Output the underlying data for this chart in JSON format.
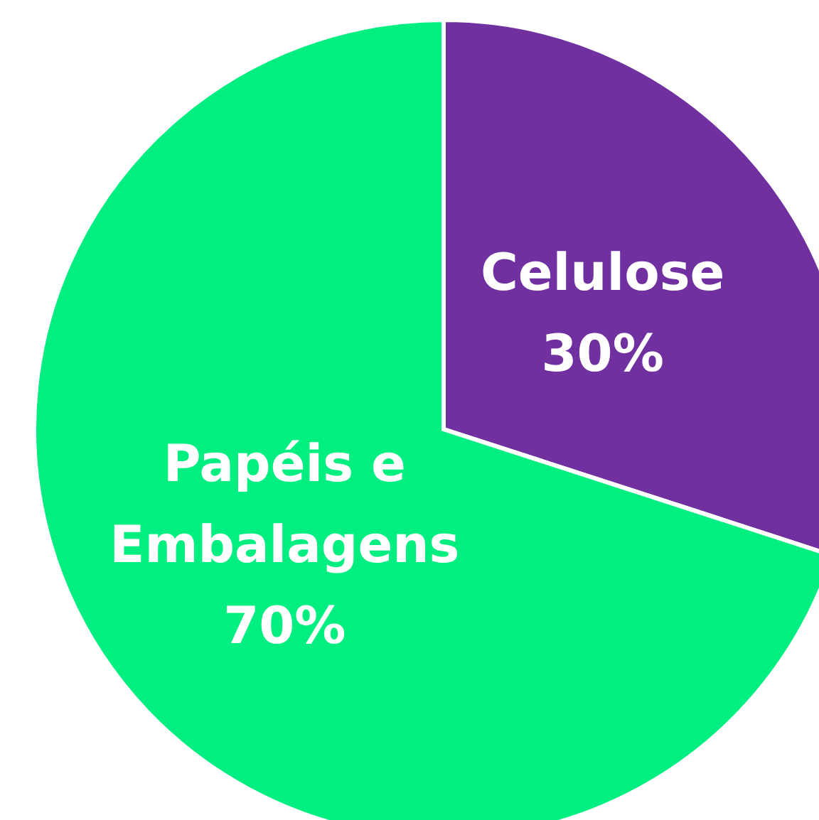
{
  "chart_data": {
    "type": "pie",
    "categories": [
      "Celulose",
      "Papéis e Embalagens"
    ],
    "values": [
      30,
      70
    ],
    "value_labels": [
      "30%",
      "70%"
    ],
    "colors": [
      "#7030a0",
      "#00ef80"
    ]
  }
}
